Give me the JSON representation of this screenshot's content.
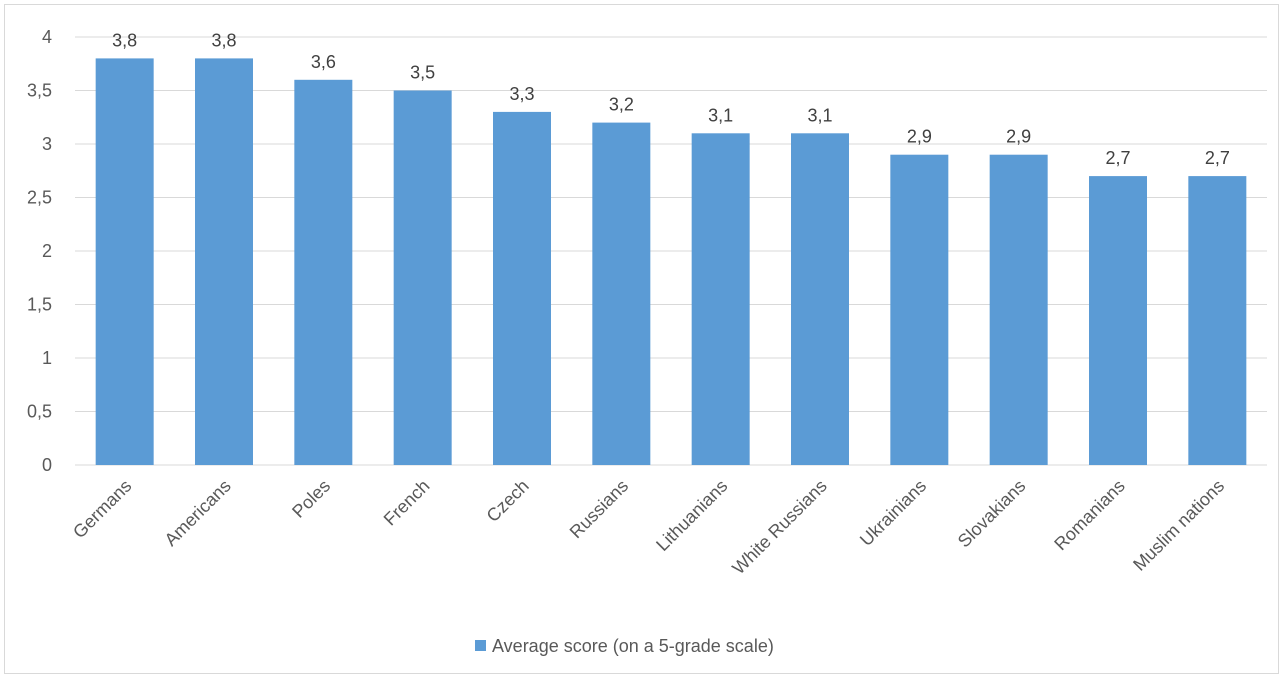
{
  "chart_data": {
    "type": "bar",
    "title": "",
    "xlabel": "",
    "ylabel": "",
    "categories": [
      "Germans",
      "Americans",
      "Poles",
      "French",
      "Czech",
      "Russians",
      "Lithuanians",
      "White Russians",
      "Ukrainians",
      "Slovakians",
      "Romanians",
      "Muslim nations"
    ],
    "series": [
      {
        "name": "Average score (on a 5-grade scale)",
        "values": [
          3.8,
          3.8,
          3.6,
          3.5,
          3.3,
          3.2,
          3.1,
          3.1,
          2.9,
          2.9,
          2.7,
          2.7
        ],
        "data_labels": [
          "3,8",
          "3,8",
          "3,6",
          "3,5",
          "3,3",
          "3,2",
          "3,1",
          "3,1",
          "2,9",
          "2,9",
          "2,7",
          "2,7"
        ],
        "color": "#5b9bd5"
      }
    ],
    "ylim": [
      0,
      4
    ],
    "yticks": [
      0,
      0.5,
      1,
      1.5,
      2,
      2.5,
      3,
      3.5,
      4
    ],
    "ytick_labels": [
      "0",
      "0,5",
      "1",
      "1,5",
      "2",
      "2,5",
      "3",
      "3,5",
      "4"
    ],
    "grid": true,
    "gridline_color": "#d9d9d9",
    "legend_position": "bottom"
  }
}
